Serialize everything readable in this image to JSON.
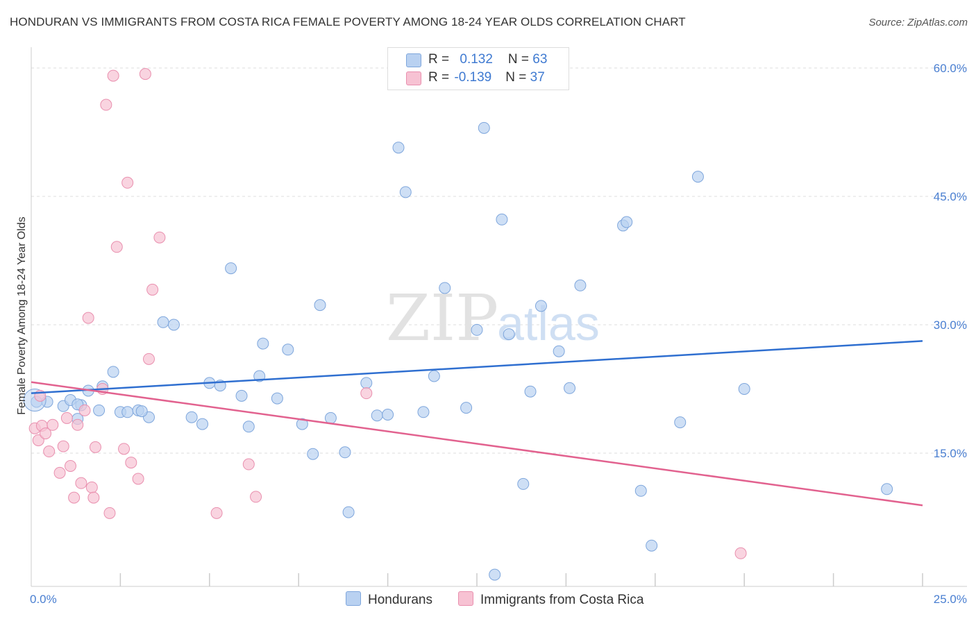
{
  "title": "HONDURAN VS IMMIGRANTS FROM COSTA RICA FEMALE POVERTY AMONG 18-24 YEAR OLDS CORRELATION CHART",
  "source": "Source: ZipAtlas.com",
  "watermark": {
    "zip": "ZIP",
    "atlas": "atlas"
  },
  "colors": {
    "blue_fill": "#b9d1f1",
    "blue_stroke": "#7ea6dc",
    "blue_line": "#2f6fd0",
    "pink_fill": "#f7c2d3",
    "pink_stroke": "#e98fae",
    "pink_line": "#e2628f",
    "tick_blue": "#4a7fd1"
  },
  "legend": {
    "row1": {
      "r_label": "R = ",
      "r_value": "0.132",
      "n_label": "N = ",
      "n_value": "63"
    },
    "row2": {
      "r_label": "R = ",
      "r_value": "-0.139",
      "n_label": "N = ",
      "n_value": "37"
    }
  },
  "bottom_legend": {
    "series1": "Hondurans",
    "series2": "Immigrants from Costa Rica"
  },
  "chart_data": {
    "type": "scatter",
    "title": "HONDURAN VS IMMIGRANTS FROM COSTA RICA FEMALE POVERTY AMONG 18-24 YEAR OLDS CORRELATION CHART",
    "xlabel": "",
    "ylabel": "Female Poverty Among 18-24 Year Olds",
    "xlim": [
      0,
      25
    ],
    "ylim": [
      0,
      60
    ],
    "x_tick_labels": {
      "min": "0.0%",
      "max": "25.0%"
    },
    "y_ticks": [
      {
        "value": 15,
        "label": "15.0%"
      },
      {
        "value": 30,
        "label": "30.0%"
      },
      {
        "value": 45,
        "label": "45.0%"
      },
      {
        "value": 60,
        "label": "60.0%"
      }
    ],
    "series": [
      {
        "name": "Hondurans",
        "color": "#b9d1f1",
        "trend": {
          "x": [
            0,
            25
          ],
          "y": [
            22.0,
            28.1
          ]
        },
        "points": [
          [
            0.15,
            21.0
          ],
          [
            0.45,
            21.0
          ],
          [
            0.9,
            20.5
          ],
          [
            1.1,
            21.2
          ],
          [
            1.3,
            19.0
          ],
          [
            1.4,
            20.6
          ],
          [
            1.6,
            22.3
          ],
          [
            1.9,
            20.0
          ],
          [
            2.0,
            22.8
          ],
          [
            2.3,
            24.5
          ],
          [
            2.5,
            19.8
          ],
          [
            2.7,
            19.8
          ],
          [
            3.0,
            20.0
          ],
          [
            3.3,
            19.2
          ],
          [
            3.7,
            30.3
          ],
          [
            4.0,
            30.0
          ],
          [
            4.5,
            19.2
          ],
          [
            4.8,
            18.4
          ],
          [
            5.0,
            23.2
          ],
          [
            5.3,
            22.9
          ],
          [
            5.6,
            36.6
          ],
          [
            5.9,
            21.7
          ],
          [
            6.1,
            18.1
          ],
          [
            6.4,
            24.0
          ],
          [
            6.5,
            27.8
          ],
          [
            6.9,
            21.4
          ],
          [
            7.2,
            27.1
          ],
          [
            7.6,
            18.4
          ],
          [
            7.9,
            14.9
          ],
          [
            8.1,
            32.3
          ],
          [
            8.4,
            19.1
          ],
          [
            8.8,
            15.1
          ],
          [
            8.9,
            8.1
          ],
          [
            9.4,
            23.2
          ],
          [
            9.7,
            19.4
          ],
          [
            10.0,
            19.5
          ],
          [
            10.3,
            50.7
          ],
          [
            10.5,
            45.5
          ],
          [
            11.0,
            19.8
          ],
          [
            11.3,
            24.0
          ],
          [
            11.6,
            34.3
          ],
          [
            12.2,
            20.3
          ],
          [
            12.5,
            29.4
          ],
          [
            12.7,
            53.0
          ],
          [
            13.0,
            0.8
          ],
          [
            13.2,
            42.3
          ],
          [
            13.4,
            28.9
          ],
          [
            13.8,
            11.4
          ],
          [
            14.0,
            22.2
          ],
          [
            14.3,
            32.2
          ],
          [
            14.8,
            26.9
          ],
          [
            15.1,
            22.6
          ],
          [
            15.4,
            34.6
          ],
          [
            16.6,
            41.6
          ],
          [
            16.7,
            42.0
          ],
          [
            17.1,
            10.6
          ],
          [
            17.4,
            4.2
          ],
          [
            18.2,
            18.6
          ],
          [
            18.7,
            47.3
          ],
          [
            20.0,
            22.5
          ],
          [
            24.0,
            10.8
          ],
          [
            3.1,
            19.9
          ],
          [
            1.3,
            20.7
          ]
        ]
      },
      {
        "name": "Immigrants from Costa Rica",
        "color": "#f7c2d3",
        "trend": {
          "x": [
            0,
            25
          ],
          "y": [
            23.3,
            8.9
          ]
        },
        "points": [
          [
            0.1,
            17.9
          ],
          [
            0.2,
            16.5
          ],
          [
            0.3,
            18.2
          ],
          [
            0.4,
            17.3
          ],
          [
            0.5,
            15.2
          ],
          [
            0.6,
            18.3
          ],
          [
            0.8,
            12.7
          ],
          [
            0.9,
            15.8
          ],
          [
            1.0,
            19.1
          ],
          [
            1.1,
            13.5
          ],
          [
            1.2,
            9.8
          ],
          [
            1.3,
            18.3
          ],
          [
            1.4,
            11.5
          ],
          [
            1.5,
            20.0
          ],
          [
            1.6,
            30.8
          ],
          [
            1.7,
            11.0
          ],
          [
            1.75,
            9.8
          ],
          [
            1.8,
            15.7
          ],
          [
            2.0,
            22.5
          ],
          [
            2.1,
            55.7
          ],
          [
            2.2,
            8.0
          ],
          [
            2.3,
            59.1
          ],
          [
            2.4,
            39.1
          ],
          [
            2.6,
            15.5
          ],
          [
            2.7,
            46.6
          ],
          [
            2.8,
            13.9
          ],
          [
            3.0,
            12.0
          ],
          [
            3.2,
            59.3
          ],
          [
            3.3,
            26.0
          ],
          [
            3.4,
            34.1
          ],
          [
            3.6,
            40.2
          ],
          [
            5.2,
            8.0
          ],
          [
            6.1,
            13.7
          ],
          [
            6.3,
            9.9
          ],
          [
            9.4,
            22.0
          ],
          [
            19.9,
            3.3
          ],
          [
            0.25,
            21.7
          ]
        ]
      }
    ]
  }
}
